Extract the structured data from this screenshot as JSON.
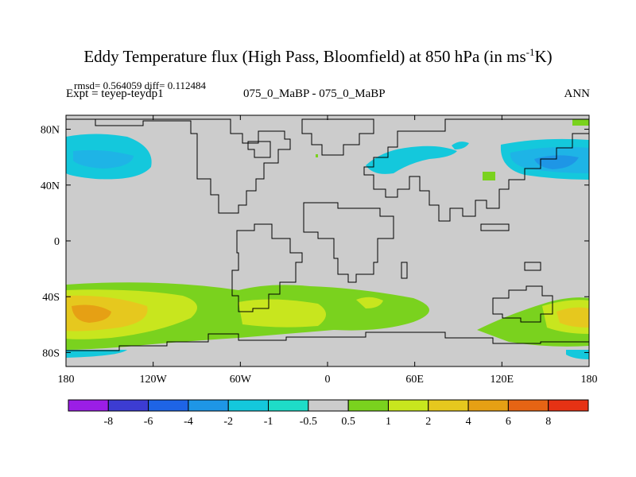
{
  "title": {
    "main": "Eddy Temperature flux (High Pass, Bloomfield) at 850 hPa (in ms",
    "superscript": "-1",
    "tail": "K)"
  },
  "stats": "rmsd= 0.564059 diff= 0.112484",
  "expt": "Expt = teyep-teydp1",
  "center_label": "075_0_MaBP - 075_0_MaBP",
  "season": "ANN",
  "map": {
    "lon_range": [
      -180,
      180
    ],
    "lat_range": [
      -90,
      90
    ],
    "background_color": "#cccccc",
    "x_ticks": [
      {
        "value": -180,
        "label": "180"
      },
      {
        "value": -120,
        "label": "120W"
      },
      {
        "value": -60,
        "label": "60W"
      },
      {
        "value": 0,
        "label": "0"
      },
      {
        "value": 60,
        "label": "60E"
      },
      {
        "value": 120,
        "label": "120E"
      },
      {
        "value": 180,
        "label": "180"
      }
    ],
    "y_ticks": [
      {
        "value": 80,
        "label": "80N"
      },
      {
        "value": 40,
        "label": "40N"
      },
      {
        "value": 0,
        "label": "0"
      },
      {
        "value": -40,
        "label": "40S"
      },
      {
        "value": -80,
        "label": "80S"
      }
    ]
  },
  "colorbar": {
    "levels": [
      "-8",
      "-6",
      "-4",
      "-2",
      "-1",
      "-0.5",
      "0.5",
      "1",
      "2",
      "4",
      "6",
      "8"
    ],
    "colors": [
      "#9b1ee6",
      "#3c3cd2",
      "#1e64e6",
      "#1e96e6",
      "#14c8dc",
      "#1edcc8",
      "#cccccc",
      "#7ad21e",
      "#c8e61e",
      "#e6c81e",
      "#e6a014",
      "#e66414",
      "#e63214"
    ]
  }
}
